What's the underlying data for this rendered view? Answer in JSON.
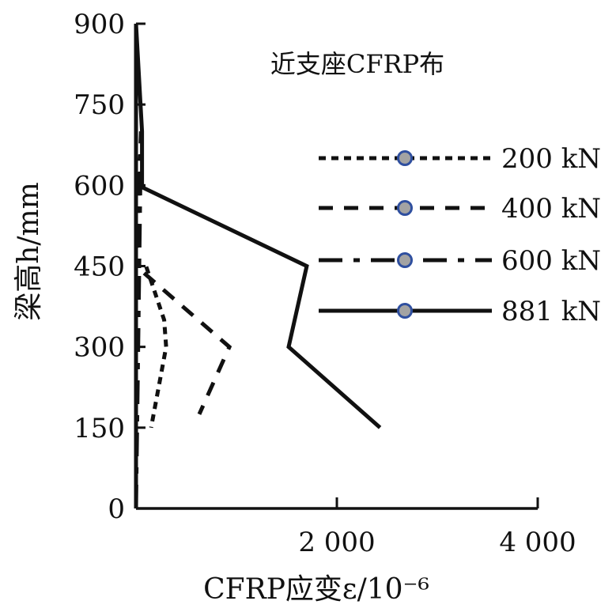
{
  "chart_data": {
    "type": "line",
    "title": "",
    "annotation": "近支座CFRP布",
    "xlabel": "CFRP应变ε/10⁻⁶",
    "ylabel": "梁高h/mm",
    "xlim": [
      0,
      4000
    ],
    "ylim": [
      0,
      900
    ],
    "xticks": [
      2000,
      4000
    ],
    "xtick_labels": [
      "2 000",
      "4 000"
    ],
    "yticks": [
      0,
      150,
      300,
      450,
      600,
      750,
      900
    ],
    "ytick_labels": [
      "0",
      "150",
      "300",
      "450",
      "600",
      "750",
      "900"
    ],
    "grid": false,
    "legend_position": "right",
    "series": [
      {
        "name": "200 kN",
        "dash": "short-dash",
        "color": "#111111",
        "x": [
          0,
          0,
          0,
          100,
          280,
          300,
          150
        ],
        "y": [
          0,
          450,
          450,
          450,
          350,
          300,
          150
        ]
      },
      {
        "name": "400 kN",
        "dash": "dash",
        "color": "#111111",
        "x": [
          0,
          0,
          0,
          930,
          630
        ],
        "y": [
          0,
          450,
          450,
          300,
          175
        ]
      },
      {
        "name": "600 kN",
        "dash": "long-dash",
        "color": "#111111",
        "x": [
          0,
          50,
          0
        ],
        "y": [
          0,
          700,
          450
        ]
      },
      {
        "name": "881 kN",
        "dash": "solid",
        "color": "#111111",
        "x": [
          0,
          0,
          60,
          60,
          20,
          1700,
          1520,
          2430
        ],
        "y": [
          0,
          900,
          700,
          600,
          600,
          450,
          300,
          150
        ]
      }
    ],
    "marker_color": "#a3a3a3",
    "marker_edge_color": "#2f4f9f"
  }
}
